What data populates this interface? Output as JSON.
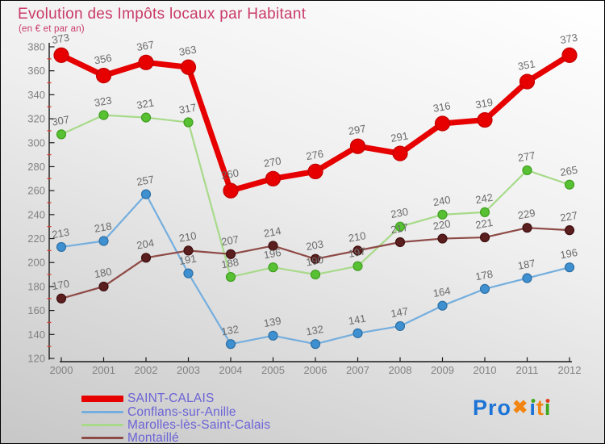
{
  "title": "Evolution des Impôts locaux par Habitant",
  "subtitle": "(en € et par an)",
  "colors": {
    "title": "#c93a68",
    "subtitle": "#c93a68",
    "legend_text": "#6b63d6",
    "axis": "#1a1a1a",
    "tick_label": "#828282",
    "value_label": "#6b6b6b",
    "minor_tick": "#d4402e",
    "background_top": "#ffffff",
    "background_bottom": "#c7c7c7"
  },
  "chart_data": {
    "type": "line",
    "x": [
      2000,
      2001,
      2002,
      2003,
      2004,
      2005,
      2006,
      2007,
      2008,
      2009,
      2010,
      2011,
      2012
    ],
    "series": [
      {
        "name": "SAINT-CALAIS",
        "values": [
          373,
          356,
          367,
          363,
          260,
          270,
          276,
          297,
          291,
          316,
          319,
          351,
          373
        ],
        "line_color": "#e60000",
        "marker_color": "#e60000",
        "marker_stroke": "#c40000",
        "line_width": 7,
        "marker_radius": 9,
        "legend_swatch_height": 8
      },
      {
        "name": "Conflans-sur-Anille",
        "values": [
          213,
          218,
          257,
          191,
          132,
          139,
          132,
          141,
          147,
          164,
          178,
          187,
          196
        ],
        "line_color": "#74aede",
        "marker_color": "#3f90d0",
        "marker_stroke": "#2d6ea3",
        "line_width": 2.2,
        "marker_radius": 5.5,
        "legend_swatch_height": 3
      },
      {
        "name": "Marolles-lès-Saint-Calais",
        "values": [
          307,
          323,
          321,
          317,
          188,
          196,
          190,
          197,
          230,
          240,
          242,
          277,
          265
        ],
        "line_color": "#a8da8a",
        "marker_color": "#58c133",
        "marker_stroke": "#3f9e1f",
        "line_width": 2.2,
        "marker_radius": 5.5,
        "legend_swatch_height": 3
      },
      {
        "name": "Montaillé",
        "values": [
          170,
          180,
          204,
          210,
          207,
          214,
          203,
          210,
          217,
          220,
          221,
          229,
          227
        ],
        "line_color": "#8e4a46",
        "marker_color": "#5a1e1e",
        "marker_stroke": "#401010",
        "line_width": 2.2,
        "marker_radius": 5.5,
        "legend_swatch_height": 3
      }
    ],
    "ylim": [
      120,
      380
    ],
    "y_major_step": 20,
    "y_minor_step": 10,
    "grid": false,
    "legend_position": "bottom-left"
  },
  "legend": {
    "items": [
      "SAINT-CALAIS",
      "Conflans-sur-Anille",
      "Marolles-lès-Saint-Calais",
      "Montaillé"
    ]
  },
  "logo": {
    "text": "Proxiti",
    "letters": [
      {
        "ch": "P",
        "color": "#1c74d6"
      },
      {
        "ch": "r",
        "color": "#1c74d6"
      },
      {
        "ch": "o",
        "color": "#1c74d6"
      },
      {
        "ch": "✖",
        "color": "#f28511",
        "x": true
      },
      {
        "ch": "ı",
        "color": "#1c74d6",
        "dot": "#3fa81c"
      },
      {
        "ch": "t",
        "color": "#f28511"
      },
      {
        "ch": "ı",
        "color": "#3fa81c",
        "dot": "#e2401c"
      }
    ]
  }
}
